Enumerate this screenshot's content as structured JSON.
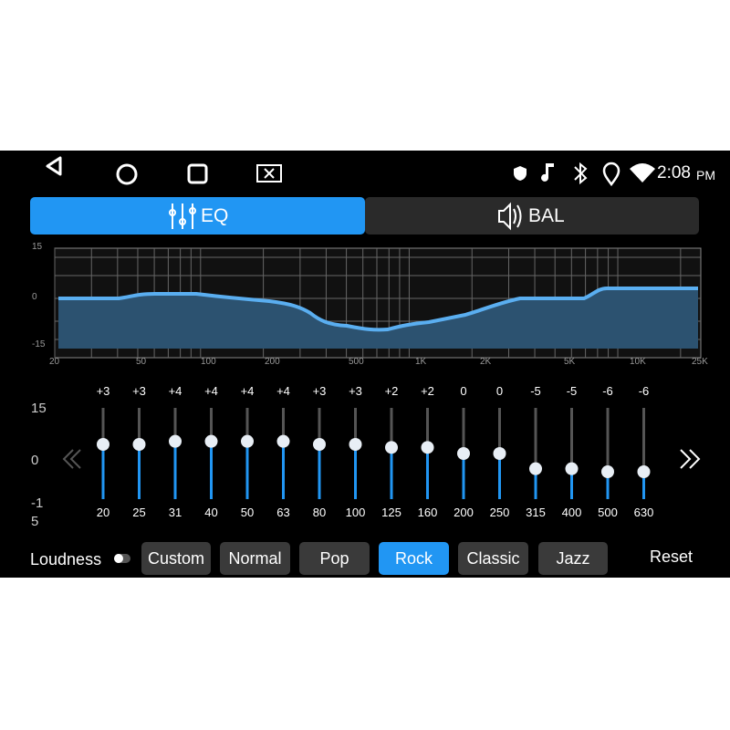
{
  "status_bar": {
    "time": "2:08",
    "period": "PM"
  },
  "tabs": [
    {
      "label": "EQ"
    },
    {
      "label": "BAL"
    }
  ],
  "graph": {
    "y_labels": [
      "15",
      "0",
      "-15"
    ],
    "x_labels": [
      "20",
      "50",
      "100",
      "200",
      "500",
      "1K",
      "2K",
      "5K",
      "10K",
      "25K"
    ]
  },
  "equalizer": {
    "scale_labels": [
      "15",
      "0",
      "-15"
    ],
    "bands": [
      {
        "freq": "20",
        "gain": "+3"
      },
      {
        "freq": "25",
        "gain": "+3"
      },
      {
        "freq": "31",
        "gain": "+4"
      },
      {
        "freq": "40",
        "gain": "+4"
      },
      {
        "freq": "50",
        "gain": "+4"
      },
      {
        "freq": "63",
        "gain": "+4"
      },
      {
        "freq": "80",
        "gain": "+3"
      },
      {
        "freq": "100",
        "gain": "+3"
      },
      {
        "freq": "125",
        "gain": "+2"
      },
      {
        "freq": "160",
        "gain": "+2"
      },
      {
        "freq": "200",
        "gain": "0"
      },
      {
        "freq": "250",
        "gain": "0"
      },
      {
        "freq": "315",
        "gain": "-5"
      },
      {
        "freq": "400",
        "gain": "-5"
      },
      {
        "freq": "500",
        "gain": "-6"
      },
      {
        "freq": "630",
        "gain": "-6"
      }
    ]
  },
  "presets": {
    "loudness": "Loudness",
    "buttons": [
      "Custom",
      "Normal",
      "Pop",
      "Rock",
      "Classic",
      "Jazz"
    ],
    "selected": "Rock",
    "reset": "Reset"
  }
}
